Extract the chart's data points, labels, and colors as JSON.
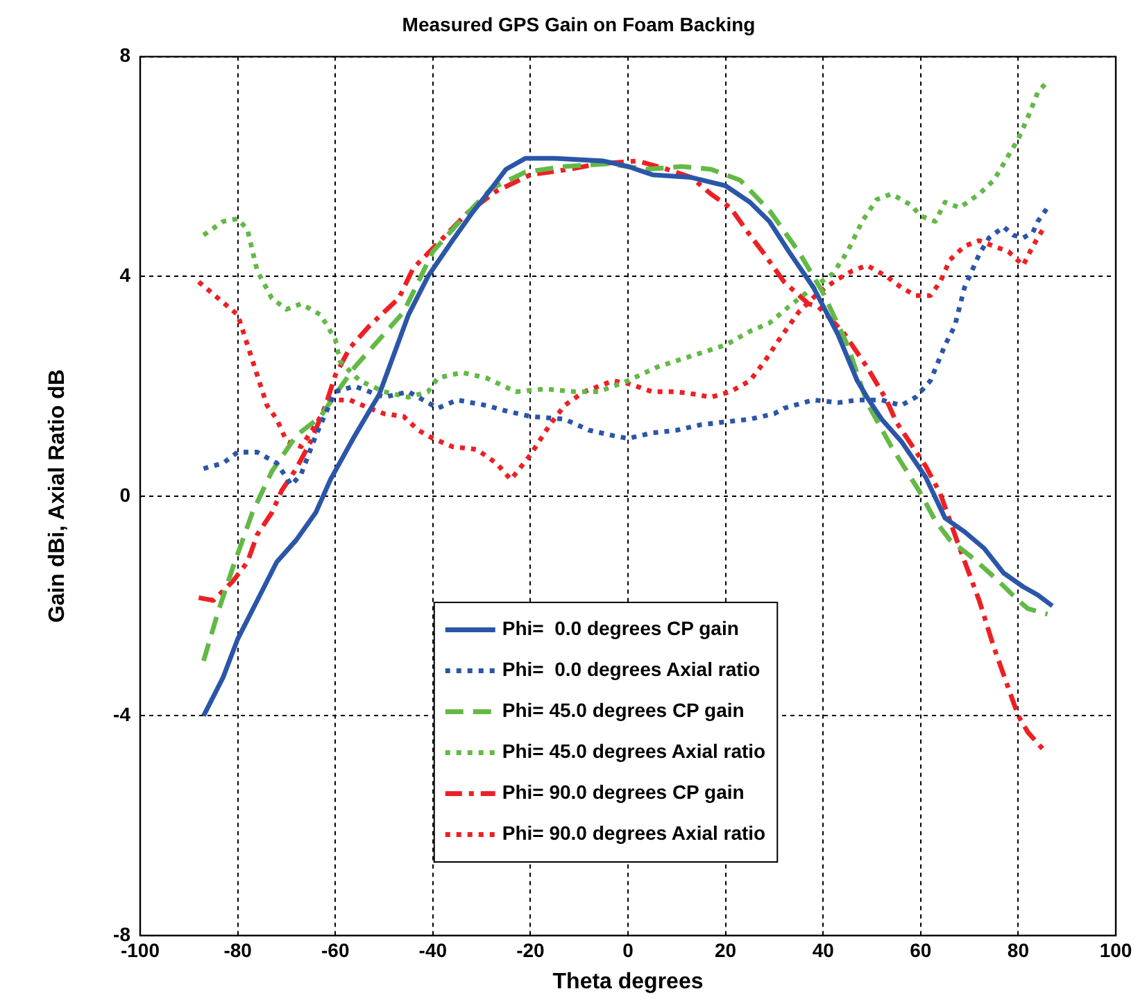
{
  "chart_data": {
    "type": "line",
    "title": "Measured GPS Gain on Foam Backing",
    "xlabel": "Theta degrees",
    "ylabel": "Gain dBi, Axial Ratio dB",
    "xlim": [
      -100,
      100
    ],
    "xticks": [
      -100,
      -80,
      -60,
      -40,
      -20,
      0,
      20,
      40,
      60,
      80,
      100
    ],
    "ylim": [
      -8,
      8
    ],
    "yticks": [
      -8,
      -4,
      0,
      4,
      8
    ],
    "grid": true,
    "legend": "bottom",
    "series": [
      {
        "name": "Phi=  0.0 degrees CP gain",
        "color": "#2b56a8",
        "line_style": "solid",
        "x": [
          -87,
          -83,
          -80,
          -76,
          -72,
          -68,
          -64,
          -61,
          -56,
          -51,
          -45,
          -41,
          -36,
          -32,
          -28,
          -25,
          -21,
          -15,
          -5,
          0,
          5,
          13,
          20,
          25,
          29,
          33,
          38,
          43,
          47,
          49,
          52,
          56,
          61,
          65,
          69,
          73,
          77,
          81,
          84,
          87
        ],
        "values": [
          -4.0,
          -3.3,
          -2.6,
          -1.9,
          -1.2,
          -0.8,
          -0.3,
          0.3,
          1.1,
          1.85,
          3.3,
          4.0,
          4.65,
          5.15,
          5.6,
          5.95,
          6.15,
          6.15,
          6.1,
          6.0,
          5.85,
          5.8,
          5.65,
          5.35,
          5.0,
          4.45,
          3.8,
          2.95,
          2.1,
          1.8,
          1.4,
          1.0,
          0.35,
          -0.4,
          -0.65,
          -0.95,
          -1.4,
          -1.65,
          -1.8,
          -2.0
        ]
      },
      {
        "name": "Phi=  0.0 degrees Axial ratio",
        "color": "#2b56a8",
        "line_style": "dotted",
        "x": [
          -87,
          -83,
          -80,
          -76,
          -72,
          -69,
          -67,
          -64,
          -62,
          -60,
          -56,
          -50,
          -45,
          -41,
          -39,
          -35,
          -29,
          -25,
          -20,
          -13,
          -8,
          -3,
          0,
          5,
          10,
          15,
          20,
          25,
          30,
          32,
          38,
          43,
          47,
          52,
          56,
          59,
          62,
          65,
          67,
          69,
          72,
          74,
          77,
          79,
          81,
          83,
          84,
          86
        ],
        "values": [
          0.5,
          0.6,
          0.8,
          0.8,
          0.6,
          0.2,
          0.4,
          1.1,
          1.5,
          1.9,
          2.0,
          1.8,
          1.9,
          1.7,
          1.6,
          1.75,
          1.65,
          1.55,
          1.45,
          1.4,
          1.2,
          1.1,
          1.05,
          1.15,
          1.2,
          1.3,
          1.35,
          1.4,
          1.5,
          1.6,
          1.75,
          1.7,
          1.75,
          1.75,
          1.65,
          1.8,
          2.1,
          2.75,
          3.1,
          3.8,
          4.4,
          4.7,
          4.9,
          4.75,
          4.7,
          4.8,
          5.0,
          5.25
        ]
      },
      {
        "name": "Phi= 45.0 degrees CP gain",
        "color": "#63b946",
        "line_style": "dashed",
        "x": [
          -87,
          -84,
          -81,
          -77,
          -73,
          -68,
          -63,
          -60,
          -56,
          -51,
          -46,
          -43,
          -40,
          -34,
          -28,
          -21,
          -13,
          -4,
          4,
          11,
          17,
          23,
          29,
          35,
          40,
          45,
          49,
          54,
          60,
          63,
          66,
          71,
          76,
          80,
          82,
          86
        ],
        "values": [
          -3.0,
          -2.1,
          -1.3,
          -0.3,
          0.45,
          1.1,
          1.45,
          1.85,
          2.35,
          2.85,
          3.35,
          3.9,
          4.45,
          5.05,
          5.6,
          5.9,
          6.0,
          6.05,
          5.95,
          6.0,
          5.95,
          5.75,
          5.2,
          4.45,
          3.7,
          2.75,
          1.7,
          0.9,
          0.05,
          -0.45,
          -0.8,
          -1.15,
          -1.55,
          -1.9,
          -2.05,
          -2.15
        ]
      },
      {
        "name": "Phi= 45.0 degrees Axial ratio",
        "color": "#63b946",
        "line_style": "dotted",
        "x": [
          -87,
          -83,
          -80,
          -78,
          -76,
          -73,
          -70,
          -67,
          -63,
          -60,
          -59,
          -55,
          -50,
          -45,
          -41,
          -39,
          -34,
          -29,
          -23,
          -17,
          -11,
          -6,
          0,
          6,
          13,
          20,
          25,
          29,
          33,
          38,
          42,
          45,
          48,
          51,
          54,
          58,
          60,
          63,
          65,
          68,
          72,
          75,
          78,
          80,
          82,
          84,
          86
        ],
        "values": [
          4.75,
          5.0,
          5.05,
          4.85,
          4.1,
          3.6,
          3.4,
          3.5,
          3.3,
          2.85,
          2.45,
          2.1,
          1.9,
          1.8,
          1.9,
          2.15,
          2.25,
          2.15,
          1.9,
          1.95,
          1.9,
          1.9,
          2.1,
          2.35,
          2.55,
          2.75,
          3.0,
          3.15,
          3.45,
          3.8,
          4.05,
          4.45,
          5.0,
          5.4,
          5.5,
          5.3,
          5.1,
          5.0,
          5.35,
          5.25,
          5.5,
          5.75,
          6.2,
          6.5,
          6.9,
          7.35,
          7.55
        ]
      },
      {
        "name": "Phi= 90.0 degrees CP gain",
        "color": "#ed2024",
        "line_style": "dashdot",
        "x": [
          -88,
          -85,
          -81,
          -78,
          -76,
          -73,
          -71,
          -68,
          -65,
          -62,
          -60,
          -57,
          -53,
          -47,
          -44,
          -39,
          -33,
          -27,
          -20,
          -12,
          -6,
          2,
          8,
          13,
          17,
          21,
          25,
          28,
          32,
          37,
          39,
          44,
          49,
          53,
          55,
          61,
          64,
          68,
          72,
          75,
          78,
          80,
          82,
          85
        ],
        "values": [
          -1.85,
          -1.9,
          -1.55,
          -1.2,
          -0.7,
          -0.3,
          0.1,
          0.5,
          1.0,
          1.65,
          2.2,
          2.7,
          3.1,
          3.6,
          4.15,
          4.6,
          5.15,
          5.55,
          5.85,
          5.95,
          6.05,
          6.1,
          5.95,
          5.8,
          5.5,
          5.25,
          4.75,
          4.4,
          3.9,
          3.5,
          3.45,
          3.0,
          2.35,
          1.75,
          1.35,
          0.55,
          0.05,
          -0.95,
          -1.9,
          -2.75,
          -3.5,
          -4.0,
          -4.3,
          -4.6
        ]
      },
      {
        "name": "Phi= 90.0 degrees Axial ratio",
        "color": "#ed2024",
        "line_style": "dotted",
        "x": [
          -88,
          -84,
          -80,
          -78,
          -76,
          -74,
          -72,
          -70,
          -67,
          -64,
          -61,
          -57,
          -53,
          -50,
          -46,
          -43,
          -40,
          -36,
          -31,
          -27,
          -24,
          -20,
          -16,
          -13,
          -9,
          -3,
          0,
          5,
          10,
          14,
          17,
          21,
          25,
          28,
          31,
          35,
          39,
          43,
          46,
          49,
          53,
          56,
          59,
          62,
          64,
          66,
          69,
          72,
          75,
          78,
          81,
          83,
          85
        ],
        "values": [
          3.9,
          3.6,
          3.3,
          2.75,
          2.2,
          1.65,
          1.4,
          1.0,
          0.9,
          1.3,
          1.75,
          1.75,
          1.6,
          1.5,
          1.45,
          1.2,
          1.05,
          0.9,
          0.85,
          0.6,
          0.3,
          0.75,
          1.3,
          1.65,
          1.9,
          2.1,
          2.05,
          1.9,
          1.9,
          1.85,
          1.8,
          1.9,
          2.1,
          2.45,
          2.85,
          3.35,
          3.7,
          3.95,
          4.1,
          4.2,
          4.0,
          3.8,
          3.65,
          3.65,
          3.9,
          4.3,
          4.55,
          4.65,
          4.55,
          4.45,
          4.2,
          4.55,
          4.85
        ]
      }
    ]
  }
}
